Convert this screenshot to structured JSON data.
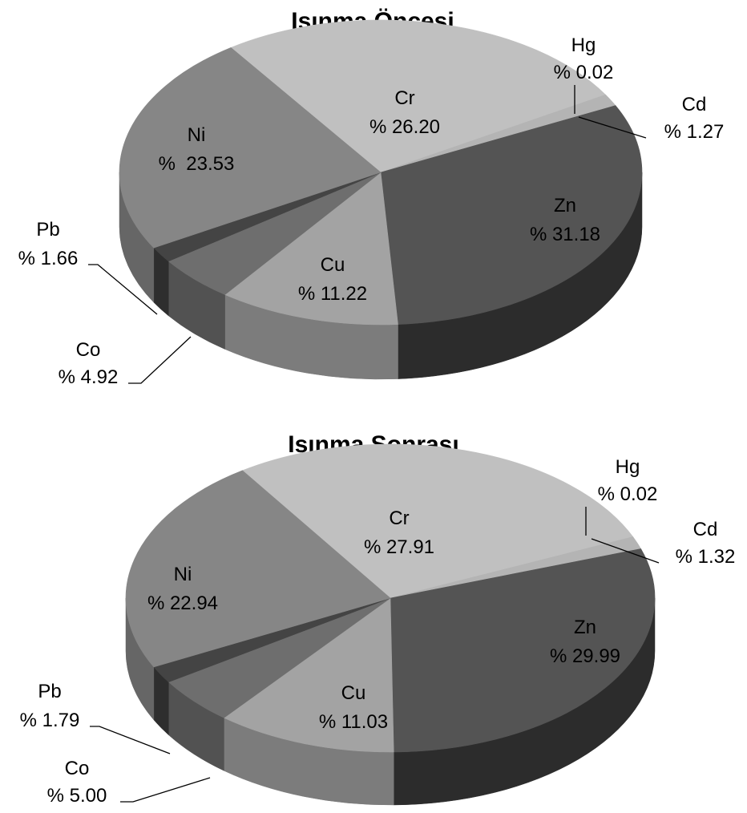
{
  "chart_data": [
    {
      "type": "pie",
      "title": "Isınma Öncesi",
      "slices": [
        {
          "label": "Cr",
          "value": 26.2,
          "text": "% 26.20",
          "color": "#c0c0c0",
          "side": "#9c9c9c"
        },
        {
          "label": "Hg",
          "value": 0.02,
          "text": "% 0.02",
          "color": "#bdbdbd",
          "side": "#9a9a9a"
        },
        {
          "label": "Cd",
          "value": 1.27,
          "text": "% 1.27",
          "color": "#b4b4b4",
          "side": "#919191"
        },
        {
          "label": "Zn",
          "value": 31.18,
          "text": "% 31.18",
          "color": "#545454",
          "side": "#2c2c2c"
        },
        {
          "label": "Cu",
          "value": 11.22,
          "text": "% 11.22",
          "color": "#a3a3a3",
          "side": "#7c7c7c"
        },
        {
          "label": "Co",
          "value": 4.92,
          "text": "% 4.92",
          "color": "#6e6e6e",
          "side": "#525252"
        },
        {
          "label": "Pb",
          "value": 1.66,
          "text": "% 1.66",
          "color": "#444444",
          "side": "#2e2e2e"
        },
        {
          "label": "Ni",
          "value": 23.53,
          "text": "%  23.53",
          "color": "#868686",
          "side": "#666666"
        }
      ]
    },
    {
      "type": "pie",
      "title": "Isınma Sonrası",
      "slices": [
        {
          "label": "Cr",
          "value": 27.91,
          "text": "% 27.91",
          "color": "#c0c0c0",
          "side": "#9c9c9c"
        },
        {
          "label": "Hg",
          "value": 0.02,
          "text": "% 0.02",
          "color": "#bdbdbd",
          "side": "#9a9a9a"
        },
        {
          "label": "Cd",
          "value": 1.32,
          "text": "% 1.32",
          "color": "#b4b4b4",
          "side": "#919191"
        },
        {
          "label": "Zn",
          "value": 29.99,
          "text": "% 29.99",
          "color": "#545454",
          "side": "#2c2c2c"
        },
        {
          "label": "Cu",
          "value": 11.03,
          "text": "% 11.03",
          "color": "#a3a3a3",
          "side": "#7c7c7c"
        },
        {
          "label": "Co",
          "value": 5.0,
          "text": "% 5.00",
          "color": "#6e6e6e",
          "side": "#525252"
        },
        {
          "label": "Pb",
          "value": 1.79,
          "text": "% 1.79",
          "color": "#444444",
          "side": "#2e2e2e"
        },
        {
          "label": "Ni",
          "value": 22.94,
          "text": "% 22.94",
          "color": "#868686",
          "side": "#666666"
        }
      ]
    }
  ]
}
